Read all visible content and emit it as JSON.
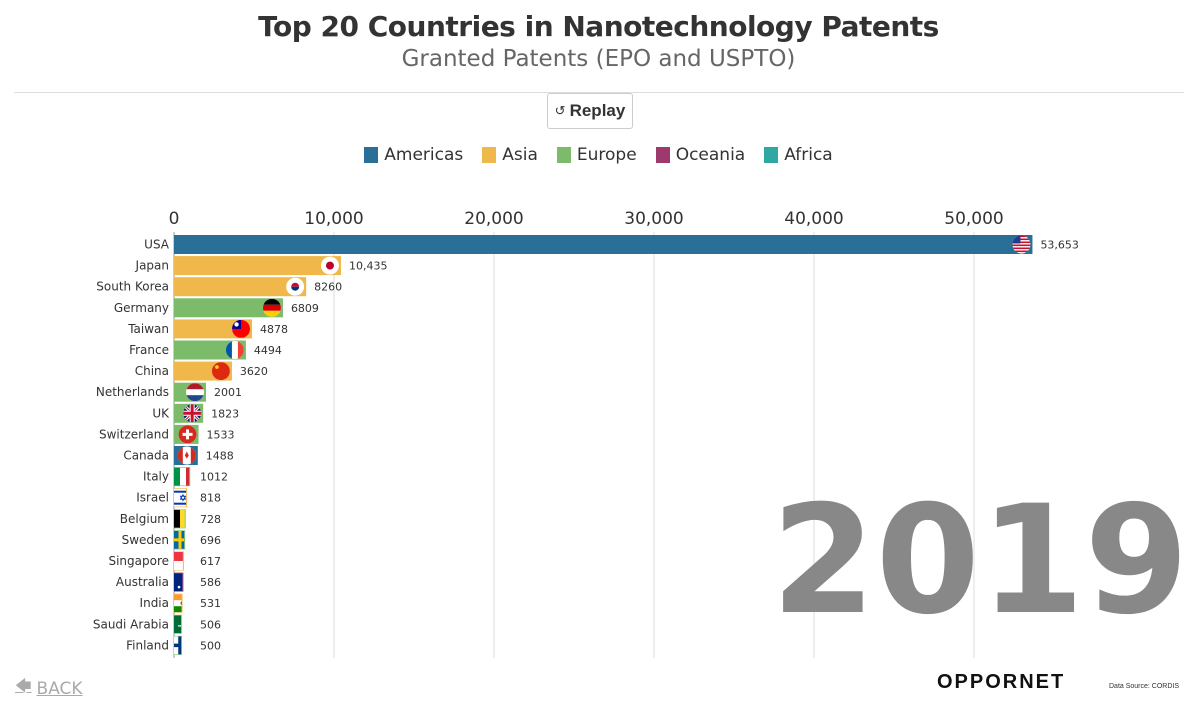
{
  "header": {
    "title": "Top 20 Countries in Nanotechnology Patents",
    "subtitle": "Granted Patents (EPO and USPTO)"
  },
  "controls": {
    "replay_label": "Replay",
    "replay_icon": "replay-icon"
  },
  "legend": [
    {
      "label": "Americas",
      "color": "#2a6f97"
    },
    {
      "label": "Asia",
      "color": "#f0b74a"
    },
    {
      "label": "Europe",
      "color": "#7bbb6a"
    },
    {
      "label": "Oceania",
      "color": "#9c3a6e"
    },
    {
      "label": "Africa",
      "color": "#30a7a2"
    }
  ],
  "chart_data": {
    "type": "bar",
    "orientation": "horizontal",
    "year": "2019",
    "xlim": [
      0,
      55000
    ],
    "x_ticks": [
      "0",
      "10,000",
      "20,000",
      "30,000",
      "40,000",
      "50,000"
    ],
    "x_tick_values": [
      0,
      10000,
      20000,
      30000,
      40000,
      50000
    ],
    "grid": true,
    "categories": [
      "USA",
      "Japan",
      "South Korea",
      "Germany",
      "Taiwan",
      "France",
      "China",
      "Netherlands",
      "UK",
      "Switzerland",
      "Canada",
      "Italy",
      "Israel",
      "Belgium",
      "Sweden",
      "Singapore",
      "Australia",
      "India",
      "Saudi Arabia",
      "Finland"
    ],
    "values": [
      53653,
      10435,
      8260,
      6809,
      4878,
      4494,
      3620,
      2001,
      1823,
      1533,
      1488,
      1012,
      818,
      728,
      696,
      617,
      586,
      531,
      506,
      500
    ],
    "value_labels": [
      "53,653",
      "10,435",
      "8260",
      "6809",
      "4878",
      "4494",
      "3620",
      "2001",
      "1823",
      "1533",
      "1488",
      "1012",
      "818",
      "728",
      "696",
      "617",
      "586",
      "531",
      "506",
      "500"
    ],
    "regions": [
      "Americas",
      "Asia",
      "Asia",
      "Europe",
      "Asia",
      "Europe",
      "Asia",
      "Europe",
      "Europe",
      "Europe",
      "Americas",
      "Europe",
      "Asia",
      "Europe",
      "Europe",
      "Asia",
      "Oceania",
      "Asia",
      "Asia",
      "Europe"
    ],
    "flags": [
      "us-flag-icon",
      "jp-flag-icon",
      "kr-flag-icon",
      "de-flag-icon",
      "tw-flag-icon",
      "fr-flag-icon",
      "cn-flag-icon",
      "nl-flag-icon",
      "gb-flag-icon",
      "ch-flag-icon",
      "ca-flag-icon",
      "it-flag-icon",
      "il-flag-icon",
      "be-flag-icon",
      "se-flag-icon",
      "sg-flag-icon",
      "au-flag-icon",
      "in-flag-icon",
      "sa-flag-icon",
      "fi-flag-icon"
    ]
  },
  "footer": {
    "back_label": "BACK",
    "back_icon": "arrow-left-icon",
    "brand": "OPPORNET",
    "source": "Data Source: CORDIS"
  }
}
